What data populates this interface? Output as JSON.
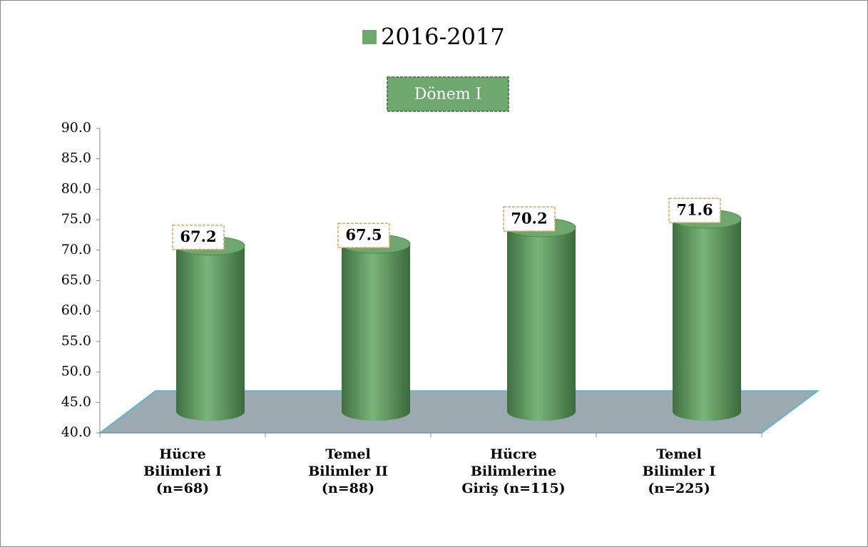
{
  "chart_data": {
    "type": "bar",
    "annotation": "Dönem I",
    "categories": [
      "Hücre Bilimleri I (n=68)",
      "Temel Bilimler II (n=88)",
      "Hücre Bilimlerine Giriş (n=115)",
      "Temel Bilimler I (n=225)"
    ],
    "series": [
      {
        "name": "2016-2017",
        "color": "#6fa86e",
        "values": [
          67.2,
          67.5,
          70.2,
          71.6
        ]
      }
    ],
    "ylim": [
      40,
      90
    ],
    "yticks": [
      {
        "value": 40,
        "label": "40.0"
      },
      {
        "value": 45,
        "label": "45.0"
      },
      {
        "value": 50,
        "label": "50.0"
      },
      {
        "value": 55,
        "label": "55.0"
      },
      {
        "value": 60,
        "label": "60.0"
      },
      {
        "value": 65,
        "label": "65.0"
      },
      {
        "value": 70,
        "label": "70.0"
      },
      {
        "value": 75,
        "label": "75.0"
      },
      {
        "value": 80,
        "label": "80.0"
      },
      {
        "value": 85,
        "label": "85.0"
      },
      {
        "value": 90,
        "label": "90.0"
      }
    ],
    "legend": "top"
  }
}
